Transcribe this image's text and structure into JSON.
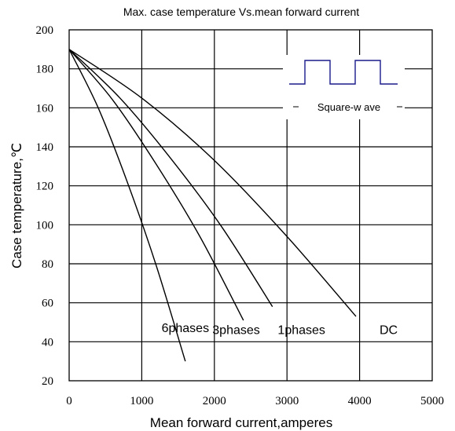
{
  "chart_data": {
    "type": "line",
    "title": "Max. case temperature  Vs.mean forward current",
    "xlabel": "Mean forward  current,amperes",
    "ylabel": "Case temperature,℃",
    "xlim": [
      0,
      5000
    ],
    "ylim": [
      20,
      200
    ],
    "xticks": [
      "0",
      "1000",
      "2000",
      "3000",
      "4000",
      "5000"
    ],
    "yticks": [
      "20",
      "40",
      "60",
      "80",
      "100",
      "120",
      "140",
      "160",
      "180",
      "200"
    ],
    "xtick_values": [
      0,
      1000,
      2000,
      3000,
      4000,
      5000
    ],
    "ytick_values": [
      20,
      40,
      60,
      80,
      100,
      120,
      140,
      160,
      180,
      200
    ],
    "grid": true,
    "line_color": "#000000",
    "inset": {
      "label": "Square-w ave",
      "color": "#1a1a8c"
    },
    "series": [
      {
        "name": "6phases",
        "x": [
          0,
          400,
          800,
          1200,
          1600
        ],
        "y": [
          190,
          160,
          122,
          79,
          30
        ],
        "label_x": 1600,
        "label_y": 47
      },
      {
        "name": "3phases",
        "x": [
          0,
          600,
          1200,
          1800,
          2400
        ],
        "y": [
          190,
          164,
          131,
          94,
          51
        ],
        "label_x": 2300,
        "label_y": 46
      },
      {
        "name": "1phases",
        "x": [
          0,
          700,
          1400,
          2100,
          2800
        ],
        "y": [
          190,
          165,
          134,
          99,
          58
        ],
        "label_x": 3200,
        "label_y": 46
      },
      {
        "name": "DC",
        "x": [
          0,
          1000,
          2000,
          3000,
          3950
        ],
        "y": [
          190,
          165,
          133,
          94,
          53
        ],
        "label_x": 4400,
        "label_y": 46
      }
    ]
  }
}
